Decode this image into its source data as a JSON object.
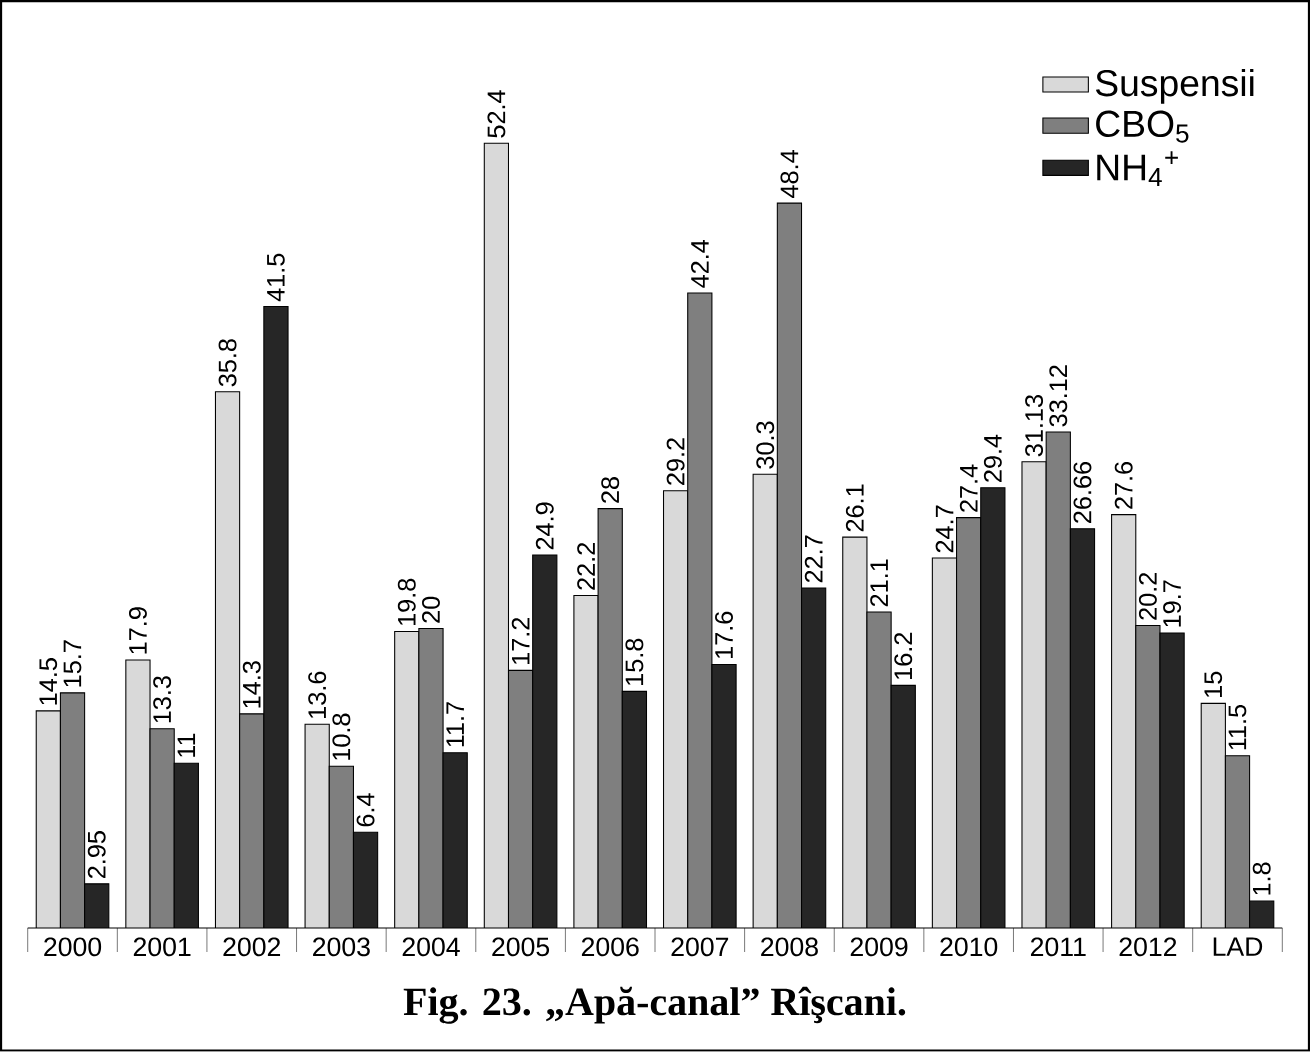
{
  "chart_data": {
    "type": "bar",
    "title": "**Fig. 23. „Apă-canal” Rîşcani.**",
    "categories": [
      "2000",
      "2001",
      "2002",
      "2003",
      "2004",
      "2005",
      "2006",
      "2007",
      "2008",
      "2009",
      "2010",
      "2011",
      "2012",
      "LAD"
    ],
    "series": [
      {
        "name": "Suspensii",
        "color": "#d9d9d9",
        "values": [
          14.5,
          17.9,
          35.8,
          13.6,
          19.8,
          52.4,
          22.2,
          29.2,
          30.3,
          26.1,
          24.7,
          31.13,
          27.6,
          15
        ]
      },
      {
        "name": "CBO$_{5}$",
        "color": "#7f7f7f",
        "values": [
          15.7,
          13.3,
          14.3,
          10.8,
          20,
          17.2,
          28,
          42.4,
          48.4,
          21.1,
          27.4,
          33.12,
          20.2,
          11.5
        ]
      },
      {
        "name": "NH$_{4}$$^{+}$",
        "color": "#262626",
        "values": [
          2.95,
          11,
          41.5,
          6.4,
          11.7,
          24.9,
          15.8,
          17.6,
          22.7,
          16.2,
          29.4,
          26.66,
          19.7,
          1.8
        ]
      }
    ],
    "data_labels": true,
    "legend": "top right"
  }
}
